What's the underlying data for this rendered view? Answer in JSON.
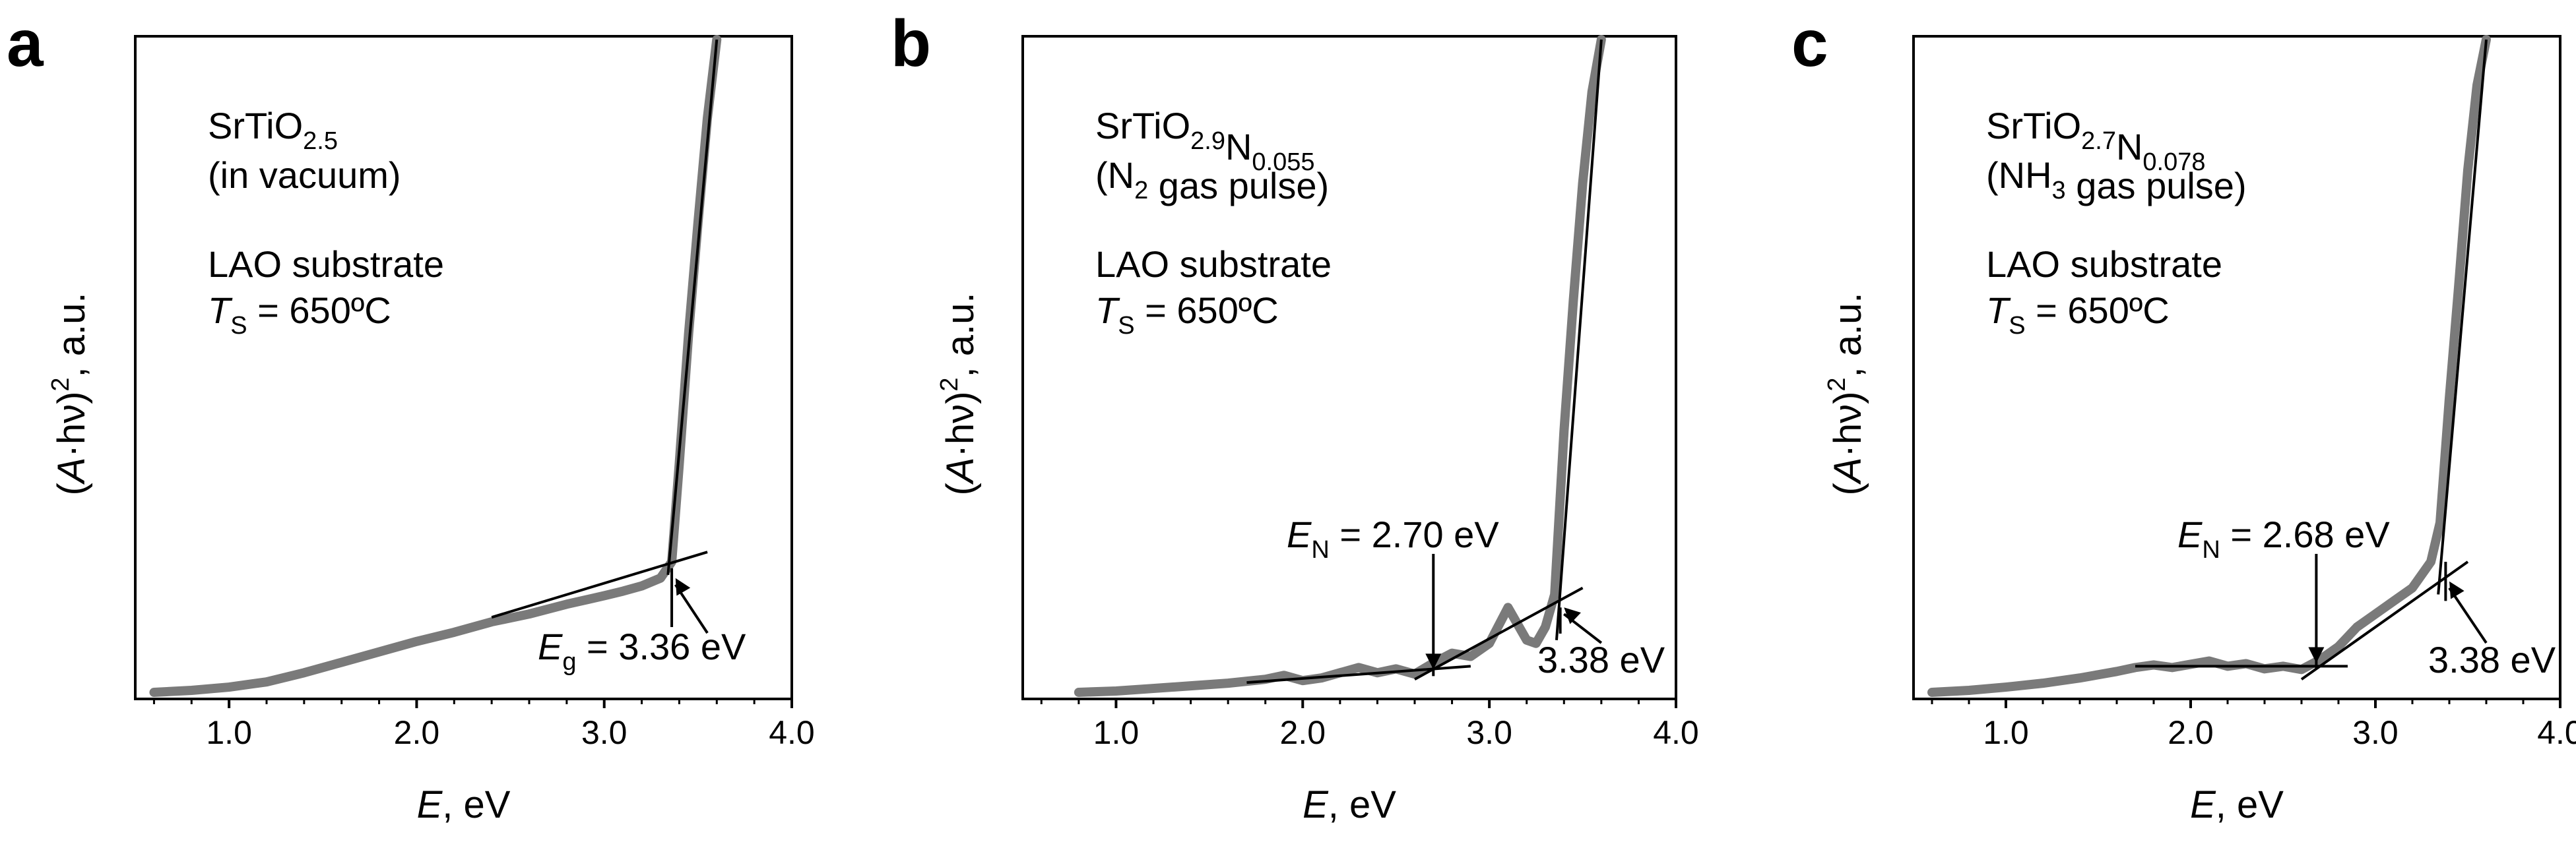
{
  "chart_data": [
    {
      "panel": "a",
      "type": "line",
      "title": "",
      "xlabel": {
        "var": "E",
        "unit": ", eV"
      },
      "ylabel": {
        "pre": "(",
        "var": "A",
        "mid": "·hν)",
        "sup": "2",
        "post": ", a.u."
      },
      "xlim": [
        0.5,
        4.0
      ],
      "xticks": [
        "1.0",
        "2.0",
        "3.0",
        "4.0"
      ],
      "xtick_values": [
        1.0,
        2.0,
        3.0,
        4.0
      ],
      "ylim": [
        0,
        1
      ],
      "compound": [
        {
          "t": "SrTiO",
          "sub": ""
        },
        {
          "t": "",
          "sub": "2.5"
        }
      ],
      "condition": "(in vacuum)",
      "substrate": "LAO substrate",
      "temp": {
        "var": "T",
        "sub": "S",
        "rest": " = 650ºC"
      },
      "fits": [
        {
          "x1": 2.4,
          "y1": 0.115,
          "x2": 3.55,
          "y2": 0.215
        },
        {
          "x1": 3.34,
          "y1": 0.18,
          "x2": 3.6,
          "y2": 1.0
        }
      ],
      "markers": [
        {
          "x": 3.36,
          "y1": 0.1,
          "y2": 0.19
        }
      ],
      "annotations": [
        {
          "var": "E",
          "sub": "g",
          "rest": " = 3.36 eV",
          "arrow_to": {
            "x": 3.38,
            "y": 0.175
          }
        }
      ],
      "curve": {
        "x": [
          0.6,
          0.8,
          1.0,
          1.2,
          1.4,
          1.6,
          1.8,
          2.0,
          2.2,
          2.4,
          2.6,
          2.8,
          3.0,
          3.1,
          3.2,
          3.3,
          3.36,
          3.4,
          3.45,
          3.5,
          3.55,
          3.6
        ],
        "y": [
          0.0,
          0.003,
          0.008,
          0.016,
          0.03,
          0.046,
          0.062,
          0.078,
          0.092,
          0.108,
          0.12,
          0.135,
          0.148,
          0.155,
          0.163,
          0.175,
          0.2,
          0.35,
          0.55,
          0.72,
          0.88,
          1.0
        ]
      }
    },
    {
      "panel": "b",
      "type": "line",
      "title": "",
      "xlabel": {
        "var": "E",
        "unit": ", eV"
      },
      "ylabel": {
        "pre": "(",
        "var": "A",
        "mid": "·hν)",
        "sup": "2",
        "post": ", a.u."
      },
      "xlim": [
        0.5,
        4.0
      ],
      "xticks": [
        "1.0",
        "2.0",
        "3.0",
        "4.0"
      ],
      "xtick_values": [
        1.0,
        2.0,
        3.0,
        4.0
      ],
      "ylim": [
        0,
        1
      ],
      "compound": [
        {
          "t": "SrTiO",
          "sub": "2.9"
        },
        {
          "t": "N",
          "sub": "0.055"
        }
      ],
      "condition_parts": [
        {
          "t": "(N",
          "sub": "2"
        },
        {
          "t": " gas pulse)",
          "sub": ""
        }
      ],
      "substrate": "LAO substrate",
      "temp": {
        "var": "T",
        "sub": "S",
        "rest": " = 650ºC"
      },
      "fits": [
        {
          "x1": 1.7,
          "y1": 0.015,
          "x2": 2.9,
          "y2": 0.04
        },
        {
          "x1": 2.6,
          "y1": 0.02,
          "x2": 3.5,
          "y2": 0.16
        },
        {
          "x1": 3.36,
          "y1": 0.08,
          "x2": 3.6,
          "y2": 1.0
        }
      ],
      "markers": [
        {
          "x": 3.38,
          "y1": 0.09,
          "y2": 0.13
        }
      ],
      "annotations": [
        {
          "var": "E",
          "sub": "N",
          "rest": " = 2.70 eV",
          "arrow_to": {
            "x": 2.7,
            "y": 0.035
          }
        },
        {
          "var": "",
          "sub": "",
          "rest": "3.38 eV",
          "arrow_to": {
            "x": 3.4,
            "y": 0.13
          }
        }
      ],
      "curve": {
        "x": [
          0.8,
          1.0,
          1.2,
          1.4,
          1.6,
          1.8,
          1.9,
          2.0,
          2.1,
          2.2,
          2.3,
          2.4,
          2.5,
          2.6,
          2.7,
          2.8,
          2.9,
          3.0,
          3.1,
          3.2,
          3.25,
          3.3,
          3.35,
          3.4,
          3.45,
          3.5,
          3.55,
          3.6
        ],
        "y": [
          0.0,
          0.002,
          0.006,
          0.01,
          0.014,
          0.02,
          0.026,
          0.018,
          0.022,
          0.03,
          0.038,
          0.03,
          0.036,
          0.028,
          0.045,
          0.06,
          0.055,
          0.075,
          0.13,
          0.08,
          0.075,
          0.1,
          0.15,
          0.4,
          0.6,
          0.78,
          0.92,
          1.0
        ]
      }
    },
    {
      "panel": "c",
      "type": "line",
      "title": "",
      "xlabel": {
        "var": "E",
        "unit": ", eV"
      },
      "ylabel": {
        "pre": "(",
        "var": "A",
        "mid": "·hν)",
        "sup": "2",
        "post": ", a.u."
      },
      "xlim": [
        0.5,
        4.0
      ],
      "xticks": [
        "1.0",
        "2.0",
        "3.0",
        "4.0"
      ],
      "xtick_values": [
        1.0,
        2.0,
        3.0,
        4.0
      ],
      "ylim": [
        0,
        1
      ],
      "compound": [
        {
          "t": "SrTiO",
          "sub": "2.7"
        },
        {
          "t": "N",
          "sub": "0.078"
        }
      ],
      "condition_parts": [
        {
          "t": "(NH",
          "sub": "3"
        },
        {
          "t": " gas pulse)",
          "sub": ""
        }
      ],
      "substrate": "LAO substrate",
      "temp": {
        "var": "T",
        "sub": "S",
        "rest": " = 650ºC"
      },
      "fits": [
        {
          "x1": 1.7,
          "y1": 0.04,
          "x2": 2.85,
          "y2": 0.04
        },
        {
          "x1": 2.6,
          "y1": 0.02,
          "x2": 3.5,
          "y2": 0.2
        },
        {
          "x1": 3.34,
          "y1": 0.15,
          "x2": 3.6,
          "y2": 1.0
        }
      ],
      "markers": [
        {
          "x": 3.38,
          "y1": 0.14,
          "y2": 0.2
        }
      ],
      "annotations": [
        {
          "var": "E",
          "sub": "N",
          "rest": " = 2.68 eV",
          "arrow_to": {
            "x": 2.68,
            "y": 0.045
          }
        },
        {
          "var": "",
          "sub": "",
          "rest": "3.38 eV",
          "arrow_to": {
            "x": 3.4,
            "y": 0.17
          }
        }
      ],
      "curve": {
        "x": [
          0.6,
          0.8,
          1.0,
          1.2,
          1.4,
          1.6,
          1.7,
          1.8,
          1.9,
          2.0,
          2.1,
          2.2,
          2.3,
          2.4,
          2.5,
          2.6,
          2.7,
          2.8,
          2.9,
          3.0,
          3.1,
          3.2,
          3.3,
          3.35,
          3.4,
          3.45,
          3.5,
          3.55,
          3.6
        ],
        "y": [
          0.0,
          0.003,
          0.008,
          0.014,
          0.022,
          0.032,
          0.038,
          0.042,
          0.038,
          0.043,
          0.048,
          0.04,
          0.044,
          0.036,
          0.04,
          0.035,
          0.05,
          0.07,
          0.1,
          0.12,
          0.14,
          0.16,
          0.2,
          0.26,
          0.45,
          0.62,
          0.8,
          0.93,
          1.0
        ]
      }
    }
  ]
}
